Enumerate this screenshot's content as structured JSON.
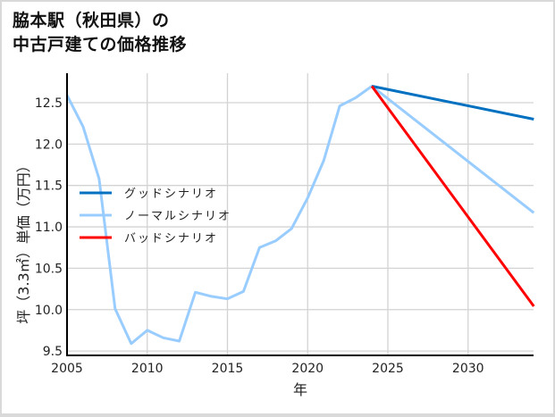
{
  "title": {
    "line1": "脇本駅（秋田県）の",
    "line2": "中古戸建ての価格推移"
  },
  "colors": {
    "good": "#0070c0",
    "normal": "#99ccff",
    "bad": "#ff0000",
    "grid": "#d3d3d3",
    "axis": "#000000"
  },
  "chart_data": {
    "type": "line",
    "title": "脇本駅（秋田県）の中古戸建ての価格推移",
    "xlabel": "年",
    "ylabel": "坪（3.3㎡）単価（万円）",
    "xlim": [
      2005,
      2034.1
    ],
    "ylim": [
      9.45,
      12.85
    ],
    "x_ticks": [
      2005,
      2010,
      2015,
      2020,
      2025,
      2030
    ],
    "x_tick_labels": [
      "2005",
      "2010",
      "2015",
      "2020",
      "2025",
      "2030"
    ],
    "y_ticks": [
      9.5,
      10.0,
      10.5,
      11.0,
      11.5,
      12.0,
      12.5
    ],
    "y_tick_labels": [
      "9.5",
      "10.0",
      "10.5",
      "11.0",
      "11.5",
      "12.0",
      "12.5"
    ],
    "grid": true,
    "legend_position": "center-left",
    "series": [
      {
        "name": "グッドシナリオ",
        "color": "#0070c0",
        "x": [
          2024,
          2034.1
        ],
        "values": [
          12.7,
          12.3
        ]
      },
      {
        "name": "ノーマルシナリオ",
        "color": "#99ccff",
        "x": [
          2005,
          2006,
          2007,
          2008,
          2009,
          2010,
          2011,
          2012,
          2013,
          2014,
          2015,
          2016,
          2017,
          2018,
          2019,
          2020,
          2021,
          2022,
          2023,
          2024,
          2034.1
        ],
        "values": [
          12.59,
          12.21,
          11.58,
          10.01,
          9.59,
          9.75,
          9.66,
          9.62,
          10.21,
          10.16,
          10.13,
          10.22,
          10.75,
          10.83,
          10.98,
          11.35,
          11.8,
          12.46,
          12.56,
          12.7,
          11.17
        ]
      },
      {
        "name": "バッドシナリオ",
        "color": "#ff0000",
        "x": [
          2024,
          2034.1
        ],
        "values": [
          12.7,
          10.04
        ]
      }
    ]
  }
}
